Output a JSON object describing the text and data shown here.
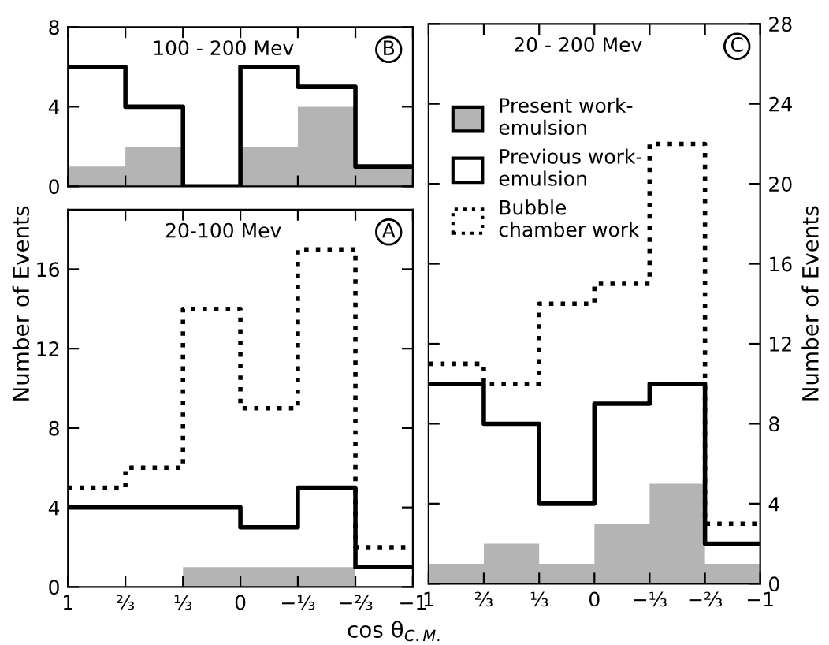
{
  "chart_data": [
    {
      "type": "histogram",
      "bins": [
        1,
        0.667,
        0.333,
        0,
        -0.333,
        -0.667,
        -1
      ],
      "xlim": [
        1,
        -1
      ],
      "ylim": [
        0,
        8
      ],
      "yticks": [
        0,
        4,
        8
      ],
      "xticks": [
        1,
        0.667,
        0.333,
        0,
        -0.333,
        -0.667,
        -1
      ],
      "tick_labels": "y",
      "grid": false,
      "legend": false,
      "annotations": [
        "100 - 200 Mev",
        "B"
      ],
      "series": [
        {
          "color": "#b4b4b4",
          "values": [
            1,
            2,
            0,
            2,
            4,
            1
          ]
        },
        {
          "type": "step",
          "color": "#000000",
          "line_style": "solid",
          "x": [
            1,
            0.667,
            0.333,
            0,
            -0.333,
            -0.667,
            -1
          ],
          "values": [
            6,
            4,
            0,
            6,
            5,
            1,
            1
          ]
        }
      ]
    },
    {
      "type": "histogram",
      "bins": [
        1,
        0.667,
        0.333,
        0,
        -0.333,
        -0.667,
        -1
      ],
      "xlim": [
        1,
        -1
      ],
      "ylim": [
        0,
        19
      ],
      "yticks": [
        0,
        4,
        8,
        12,
        16
      ],
      "xticks": [
        {
          "value": 1,
          "label": "1"
        },
        {
          "value": 0.667,
          "label": "⅔"
        },
        {
          "value": 0.333,
          "label": "⅓"
        },
        {
          "value": 0,
          "label": "0"
        },
        {
          "value": -0.333,
          "label": "−⅓"
        },
        {
          "value": -0.667,
          "label": "−⅔"
        },
        {
          "value": -1,
          "label": "−1"
        }
      ],
      "ylabel": "Number of Events",
      "xlabel": "cos θ$_{C.M.}$",
      "grid": false,
      "legend": false,
      "annotations": [
        "20-100 Mev",
        "A"
      ],
      "series": [
        {
          "color": "#b4b4b4",
          "values": [
            0,
            0,
            1,
            1,
            1,
            0
          ]
        },
        {
          "type": "step",
          "color": "#000000",
          "line_style": "solid",
          "x": [
            1,
            0.667,
            0.333,
            0,
            -0.333,
            -0.667,
            -1
          ],
          "values": [
            4,
            4,
            4,
            3,
            5,
            1,
            1
          ]
        },
        {
          "type": "step",
          "color": "#000000",
          "line_style": "dotted",
          "x": [
            1,
            0.667,
            0.333,
            0,
            -0.333,
            -0.667,
            -1
          ],
          "values": [
            5,
            6,
            14,
            9,
            17,
            2,
            2
          ]
        }
      ]
    },
    {
      "type": "histogram",
      "bins": [
        1,
        0.667,
        0.333,
        0,
        -0.333,
        -0.667,
        -1
      ],
      "xlim": [
        1,
        -1
      ],
      "ylim": [
        0,
        28
      ],
      "yticks": [
        0,
        4,
        8,
        12,
        16,
        20,
        24,
        28
      ],
      "xticks": [
        {
          "value": 1,
          "label": "1"
        },
        {
          "value": 0.667,
          "label": "⅔"
        },
        {
          "value": 0.333,
          "label": "⅓"
        },
        {
          "value": 0,
          "label": "0"
        },
        {
          "value": -0.333,
          "label": "−⅓"
        },
        {
          "value": -0.667,
          "label": "−⅔"
        },
        {
          "value": -1,
          "label": "−1"
        }
      ],
      "y2label": "Number of Events",
      "grid": false,
      "legend": "top left",
      "annotations": [
        "20 - 200 Mev",
        "C"
      ],
      "series": [
        {
          "name": "Present work-\nemulsion",
          "color": "#b4b4b4",
          "values": [
            1,
            2,
            1,
            3,
            5,
            1
          ]
        },
        {
          "type": "step",
          "name": "Previous work-\nemulsion",
          "color": "#000000",
          "line_style": "solid",
          "x": [
            1,
            0.667,
            0.333,
            0,
            -0.333,
            -0.667,
            -1
          ],
          "values": [
            10,
            8,
            4,
            9,
            10,
            2,
            2
          ]
        },
        {
          "type": "step",
          "name": "Bubble\nchamber work",
          "color": "#000000",
          "line_style": "dotted",
          "x": [
            1,
            0.667,
            0.333,
            0,
            -0.333,
            -0.667,
            -1
          ],
          "values": [
            11,
            10,
            14,
            15,
            22,
            3,
            3
          ]
        }
      ]
    }
  ]
}
